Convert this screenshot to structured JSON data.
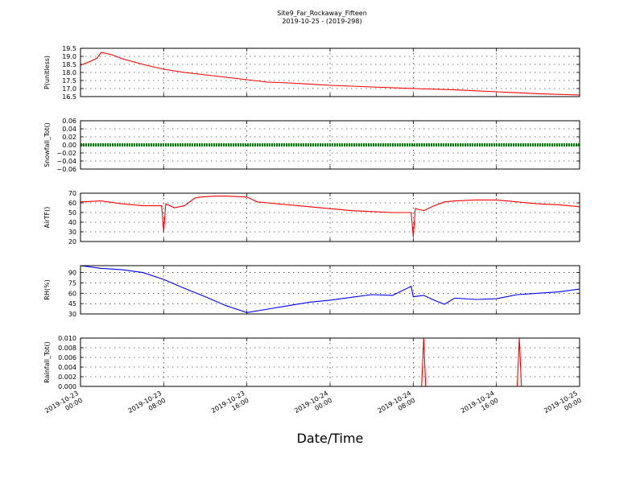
{
  "title": {
    "line1": "Site9_Far_Rockaway_Fifteen",
    "line2": "2019-10-25 - (2019-298)"
  },
  "xlabel": "Date/Time",
  "x_ticks": [
    {
      "line1": "2019-10-23",
      "line2": "00:00"
    },
    {
      "line1": "2019-10-23",
      "line2": "08:00"
    },
    {
      "line1": "2019-10-23",
      "line2": "16:00"
    },
    {
      "line1": "2019-10-24",
      "line2": "00:00"
    },
    {
      "line1": "2019-10-24",
      "line2": "08:00"
    },
    {
      "line1": "2019-10-24",
      "line2": "16:00"
    },
    {
      "line1": "2019-10-25",
      "line2": "00:00"
    }
  ],
  "chart_data": [
    {
      "type": "line",
      "ylabel": "P(unitless)",
      "ylim": [
        16.5,
        19.5
      ],
      "yticks": [
        "19.5",
        "19.0",
        "18.5",
        "18.0",
        "17.5",
        "17.0",
        "16.5"
      ],
      "grid": true,
      "color": "#ff0000",
      "x": [
        "2019-10-23 00:00",
        "2019-10-23 01:00",
        "2019-10-23 01:36",
        "2019-10-23 02:00",
        "2019-10-23 03:00",
        "2019-10-23 04:00",
        "2019-10-23 06:00",
        "2019-10-23 08:00",
        "2019-10-23 10:00",
        "2019-10-23 12:00",
        "2019-10-23 14:00",
        "2019-10-23 16:00",
        "2019-10-23 18:00",
        "2019-10-23 20:00",
        "2019-10-23 22:00",
        "2019-10-24 00:00",
        "2019-10-24 04:00",
        "2019-10-24 08:00",
        "2019-10-24 12:00",
        "2019-10-24 16:00",
        "2019-10-24 20:00",
        "2019-10-25 00:00"
      ],
      "values": [
        18.45,
        18.7,
        18.9,
        19.25,
        19.1,
        18.85,
        18.5,
        18.2,
        18.0,
        17.85,
        17.7,
        17.55,
        17.4,
        17.35,
        17.28,
        17.2,
        17.1,
        17.0,
        16.92,
        16.8,
        16.68,
        16.6
      ]
    },
    {
      "type": "line",
      "ylabel": "Snowfall_Tot()",
      "ylim": [
        -0.06,
        0.06
      ],
      "yticks": [
        "0.06",
        "0.04",
        "0.02",
        "0.00",
        "−0.02",
        "−0.04",
        "−0.06"
      ],
      "grid": true,
      "color": "#008000",
      "x": [
        "2019-10-23 00:00",
        "2019-10-25 00:00"
      ],
      "values": [
        0.0,
        0.0
      ]
    },
    {
      "type": "line",
      "ylabel": "AirTF()",
      "ylim": [
        20,
        70
      ],
      "yticks": [
        "70",
        "60",
        "50",
        "40",
        "30",
        "20"
      ],
      "grid": true,
      "color": "#ff0000",
      "x": [
        "2019-10-23 00:00",
        "2019-10-23 02:00",
        "2019-10-23 04:00",
        "2019-10-23 06:00",
        "2019-10-23 07:48",
        "2019-10-23 08:00",
        "2019-10-23 08:12",
        "2019-10-23 09:00",
        "2019-10-23 10:00",
        "2019-10-23 11:00",
        "2019-10-23 11:30",
        "2019-10-23 13:00",
        "2019-10-23 14:00",
        "2019-10-23 16:00",
        "2019-10-23 17:00",
        "2019-10-23 18:00",
        "2019-10-23 20:00",
        "2019-10-23 22:00",
        "2019-10-24 00:00",
        "2019-10-24 02:00",
        "2019-10-24 04:00",
        "2019-10-24 06:00",
        "2019-10-24 07:48",
        "2019-10-24 08:00",
        "2019-10-24 08:12",
        "2019-10-24 09:00",
        "2019-10-24 10:00",
        "2019-10-24 11:00",
        "2019-10-24 12:00",
        "2019-10-24 14:00",
        "2019-10-24 16:00",
        "2019-10-24 18:00",
        "2019-10-24 20:00",
        "2019-10-24 22:00",
        "2019-10-25 00:00"
      ],
      "values": [
        61,
        62,
        59,
        57,
        57,
        30,
        59,
        55,
        57,
        65,
        66,
        67,
        67,
        66,
        61,
        60,
        58,
        56,
        54,
        52,
        51,
        50,
        50,
        25,
        54,
        52,
        57,
        61,
        62,
        63,
        63,
        61,
        59,
        58,
        56
      ]
    },
    {
      "type": "line",
      "ylabel": "RH(%)",
      "ylim": [
        30,
        100
      ],
      "yticks": [
        "90",
        "75",
        "60",
        "45",
        "30"
      ],
      "grid": true,
      "color": "#0000ff",
      "x": [
        "2019-10-23 00:00",
        "2019-10-23 02:00",
        "2019-10-23 04:00",
        "2019-10-23 06:00",
        "2019-10-23 08:00",
        "2019-10-23 10:00",
        "2019-10-23 12:00",
        "2019-10-23 14:00",
        "2019-10-23 15:00",
        "2019-10-23 16:00",
        "2019-10-23 18:00",
        "2019-10-23 20:00",
        "2019-10-23 22:00",
        "2019-10-24 00:00",
        "2019-10-24 02:00",
        "2019-10-24 04:00",
        "2019-10-24 06:00",
        "2019-10-24 07:48",
        "2019-10-24 08:00",
        "2019-10-24 09:00",
        "2019-10-24 10:00",
        "2019-10-24 11:00",
        "2019-10-24 12:00",
        "2019-10-24 14:00",
        "2019-10-24 16:00",
        "2019-10-24 18:00",
        "2019-10-24 20:00",
        "2019-10-24 22:00",
        "2019-10-25 00:00"
      ],
      "values": [
        100,
        96,
        94,
        90,
        80,
        67,
        55,
        42,
        37,
        32,
        37,
        42,
        47,
        50,
        54,
        58,
        57,
        70,
        55,
        57,
        50,
        44,
        53,
        51,
        52,
        58,
        60,
        62,
        66
      ]
    },
    {
      "type": "line",
      "ylabel": "Rainfall_Tot()",
      "ylim": [
        0.0,
        0.01
      ],
      "yticks": [
        "0.010",
        "0.008",
        "0.006",
        "0.004",
        "0.002",
        "0.000"
      ],
      "grid": true,
      "color": "#ff0000",
      "x": [
        "2019-10-23 00:00",
        "2019-10-24 08:48",
        "2019-10-24 09:00",
        "2019-10-24 09:12",
        "2019-10-24 18:00",
        "2019-10-24 18:12",
        "2019-10-24 18:24",
        "2019-10-25 00:00"
      ],
      "values": [
        0.0,
        0.0,
        0.01,
        0.0,
        0.0,
        0.01,
        0.0,
        0.0
      ]
    }
  ]
}
